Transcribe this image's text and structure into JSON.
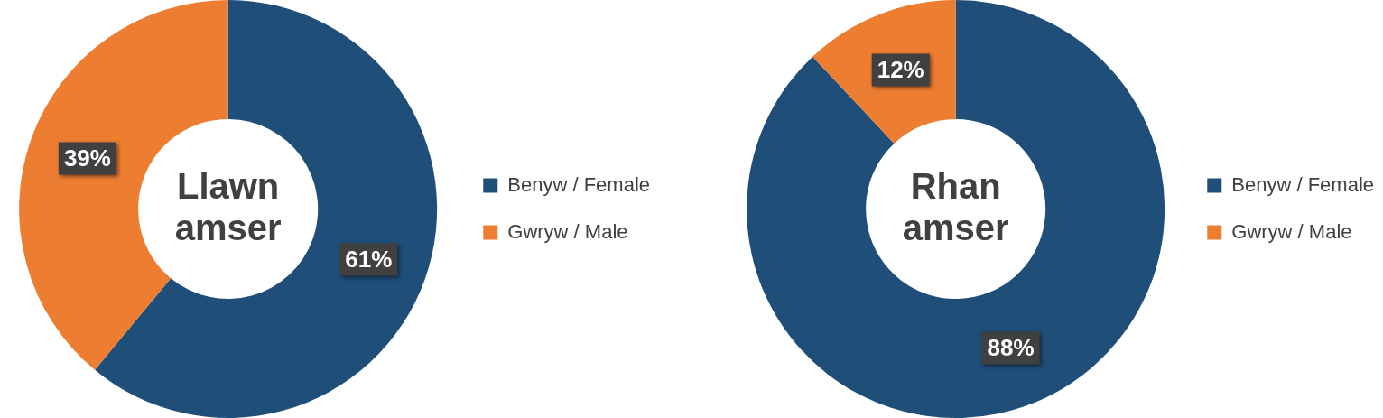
{
  "chart_data": [
    {
      "type": "donut",
      "title": "Llawn amser",
      "categories": [
        "Benyw / Female",
        "Gwryw / Male"
      ],
      "values": [
        61,
        39
      ],
      "colors": [
        "#1f4e79",
        "#ed7d31"
      ],
      "value_labels": [
        "61%",
        "39%"
      ],
      "legend": "right"
    },
    {
      "type": "donut",
      "title": "Rhan amser",
      "categories": [
        "Benyw / Female",
        "Gwryw / Male"
      ],
      "values": [
        88,
        12
      ],
      "colors": [
        "#1f4e79",
        "#ed7d31"
      ],
      "value_labels": [
        "88%",
        "12%"
      ],
      "legend": "right"
    }
  ]
}
